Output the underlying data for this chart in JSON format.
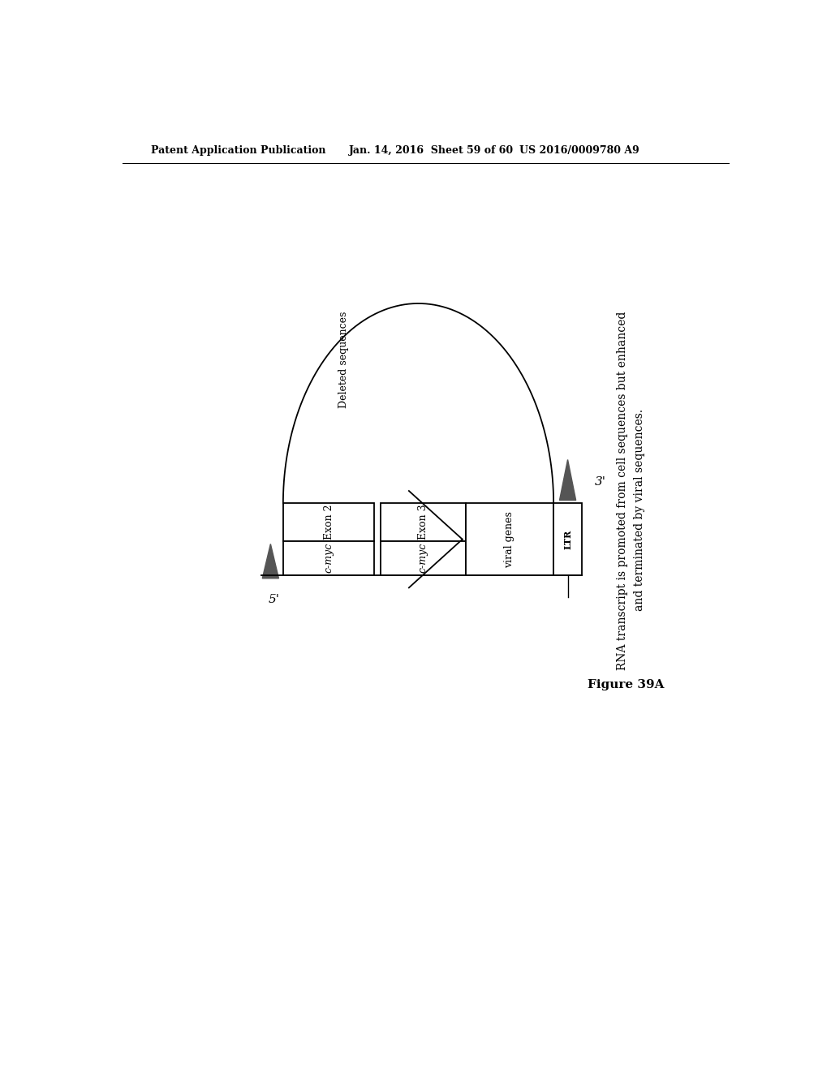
{
  "bg_color": "#ffffff",
  "header_left": "Patent Application Publication",
  "header_mid": "Jan. 14, 2016  Sheet 59 of 60",
  "header_right": "US 2016/0009780 A9",
  "figure_label": "Figure 39A",
  "caption_line1": "RNA transcript is promoted from cell sequences but enhanced",
  "caption_line2": "and terminated by viral sequences.",
  "label_5prime": "5'",
  "label_3prime": "3'",
  "exon2_label": "Exon 2",
  "exon3_label": "Exon 3",
  "cmyc_label": "c-myc",
  "viral_genes_label": "viral genes",
  "ltr_label": "LTR",
  "deleted_sequences_label": "Deleted sequences",
  "header_fontsize": 9,
  "label_fontsize": 9,
  "caption_fontsize": 10,
  "figure_label_fontsize": 11
}
